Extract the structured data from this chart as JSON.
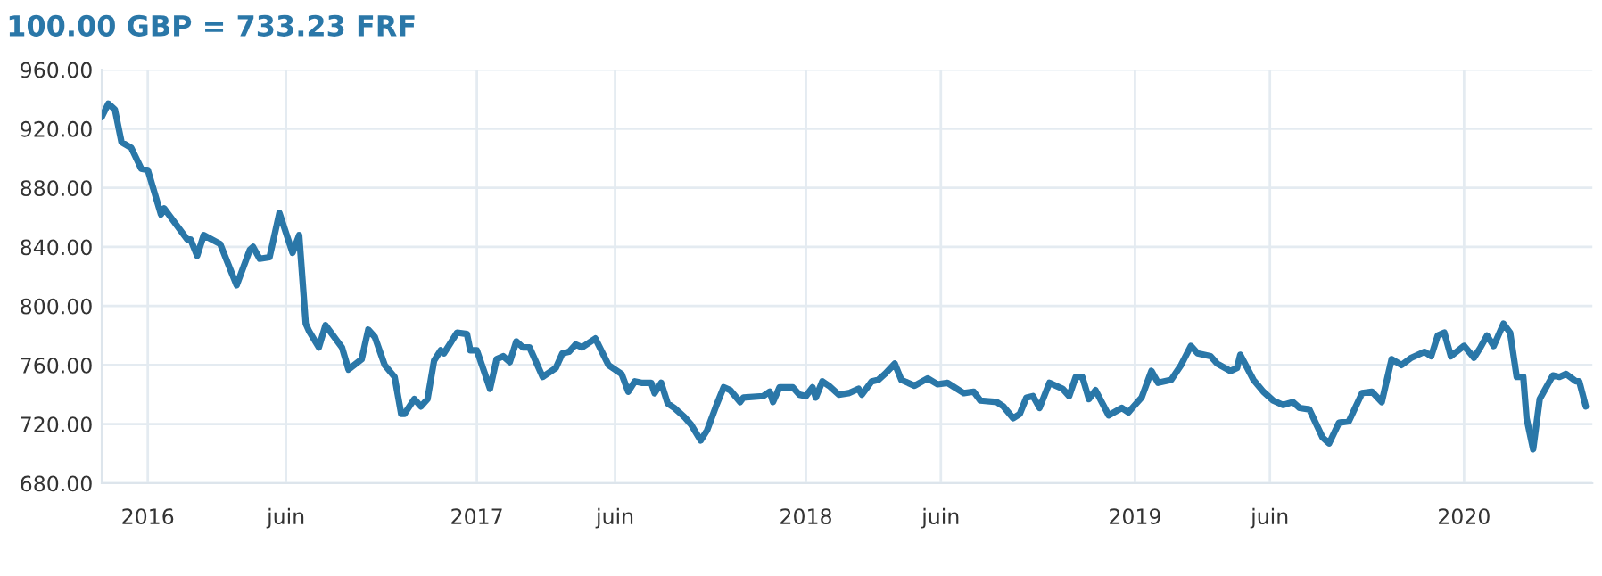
{
  "chart_data": {
    "type": "line",
    "title": "100.00 GBP = 733.23 FRF",
    "x": [
      2015.86,
      2015.88,
      2015.9,
      2015.92,
      2015.95,
      2015.98,
      2016.0,
      2016.04,
      2016.05,
      2016.12,
      2016.13,
      2016.15,
      2016.17,
      2016.22,
      2016.27,
      2016.31,
      2016.32,
      2016.34,
      2016.37,
      2016.4,
      2016.44,
      2016.46,
      2016.48,
      2016.49,
      2016.52,
      2016.54,
      2016.59,
      2016.61,
      2016.65,
      2016.67,
      2016.69,
      2016.72,
      2016.75,
      2016.77,
      2016.78,
      2016.81,
      2016.83,
      2016.85,
      2016.87,
      2016.89,
      2016.9,
      2016.94,
      2016.97,
      2016.98,
      2017.0,
      2017.04,
      2017.06,
      2017.08,
      2017.1,
      2017.12,
      2017.14,
      2017.16,
      2017.2,
      2017.24,
      2017.26,
      2017.28,
      2017.3,
      2017.32,
      2017.36,
      2017.4,
      2017.44,
      2017.46,
      2017.48,
      2017.5,
      2017.53,
      2017.54,
      2017.56,
      2017.58,
      2017.6,
      2017.63,
      2017.65,
      2017.68,
      2017.7,
      2017.73,
      2017.75,
      2017.77,
      2017.8,
      2017.81,
      2017.87,
      2017.89,
      2017.9,
      2017.92,
      2017.96,
      2017.98,
      2018.0,
      2018.02,
      2018.03,
      2018.05,
      2018.07,
      2018.1,
      2018.13,
      2018.16,
      2018.17,
      2018.2,
      2018.22,
      2018.24,
      2018.27,
      2018.29,
      2018.33,
      2018.37,
      2018.4,
      2018.43,
      2018.48,
      2018.51,
      2018.53,
      2018.58,
      2018.6,
      2018.63,
      2018.65,
      2018.67,
      2018.69,
      2018.71,
      2018.74,
      2018.78,
      2018.8,
      2018.82,
      2018.84,
      2018.86,
      2018.88,
      2018.92,
      2018.96,
      2018.98,
      2019.02,
      2019.05,
      2019.07,
      2019.11,
      2019.14,
      2019.17,
      2019.19,
      2019.23,
      2019.25,
      2019.29,
      2019.31,
      2019.32,
      2019.36,
      2019.39,
      2019.42,
      2019.45,
      2019.48,
      2019.5,
      2019.53,
      2019.57,
      2019.59,
      2019.62,
      2019.65,
      2019.69,
      2019.72,
      2019.75,
      2019.78,
      2019.81,
      2019.84,
      2019.88,
      2019.9,
      2019.92,
      2019.94,
      2019.96,
      2020.0,
      2020.03,
      2020.05,
      2020.07,
      2020.09,
      2020.12,
      2020.14,
      2020.16,
      2020.18,
      2020.19,
      2020.21,
      2020.23,
      2020.27,
      2020.29,
      2020.31,
      2020.34,
      2020.35,
      2020.37
    ],
    "series": [
      {
        "color": "#2a77a8",
        "values": [
          928,
          937,
          933,
          911,
          907,
          893,
          892,
          862,
          866,
          845,
          845,
          834,
          848,
          842,
          814,
          838,
          840,
          832,
          833,
          863,
          836,
          848,
          788,
          783,
          772,
          787,
          772,
          757,
          764,
          784,
          779,
          760,
          752,
          727,
          727,
          737,
          732,
          737,
          763,
          770,
          768,
          782,
          781,
          770,
          770,
          744,
          764,
          766,
          762,
          776,
          772,
          772,
          752,
          758,
          768,
          769,
          774,
          772,
          778,
          760,
          754,
          742,
          749,
          748,
          748,
          741,
          748,
          734,
          731,
          725,
          720,
          709,
          716,
          734,
          745,
          743,
          735,
          738,
          739,
          742,
          735,
          745,
          745,
          740,
          739,
          745,
          738,
          749,
          746,
          740,
          741,
          744,
          740,
          749,
          750,
          754,
          761,
          750,
          746,
          751,
          747,
          748,
          741,
          742,
          736,
          735,
          732,
          724,
          727,
          738,
          739,
          731,
          748,
          744,
          739,
          752,
          752,
          737,
          743,
          726,
          731,
          728,
          738,
          756,
          748,
          750,
          760,
          773,
          768,
          766,
          761,
          756,
          758,
          767,
          750,
          742,
          736,
          733,
          735,
          731,
          730,
          711,
          707,
          721,
          722,
          741,
          742,
          735,
          764,
          760,
          765,
          769,
          766,
          780,
          782,
          766,
          773,
          765,
          772,
          780,
          773,
          788,
          782,
          752,
          752,
          724,
          703,
          737,
          753,
          752,
          754,
          749,
          749,
          732
        ]
      }
    ],
    "xlim": [
      2015.86,
      2020.39
    ],
    "xticks": [
      {
        "value": 2016,
        "label": "2016"
      },
      {
        "value": 2016.42,
        "label": "juin"
      },
      {
        "value": 2017,
        "label": "2017"
      },
      {
        "value": 2017.42,
        "label": "juin"
      },
      {
        "value": 2018,
        "label": "2018"
      },
      {
        "value": 2018.41,
        "label": "juin"
      },
      {
        "value": 2019,
        "label": "2019"
      },
      {
        "value": 2019.41,
        "label": "juin"
      },
      {
        "value": 2020,
        "label": "2020"
      }
    ],
    "ylim": [
      680,
      960
    ],
    "yticks": [
      {
        "value": 680,
        "label": "680.00"
      },
      {
        "value": 720,
        "label": "720.00"
      },
      {
        "value": 760,
        "label": "760.00"
      },
      {
        "value": 800,
        "label": "800.00"
      },
      {
        "value": 840,
        "label": "840.00"
      },
      {
        "value": 880,
        "label": "880.00"
      },
      {
        "value": 920,
        "label": "920.00"
      },
      {
        "value": 960,
        "label": "960.00"
      }
    ],
    "grid": true,
    "marker": "none",
    "line_style": "solid"
  }
}
